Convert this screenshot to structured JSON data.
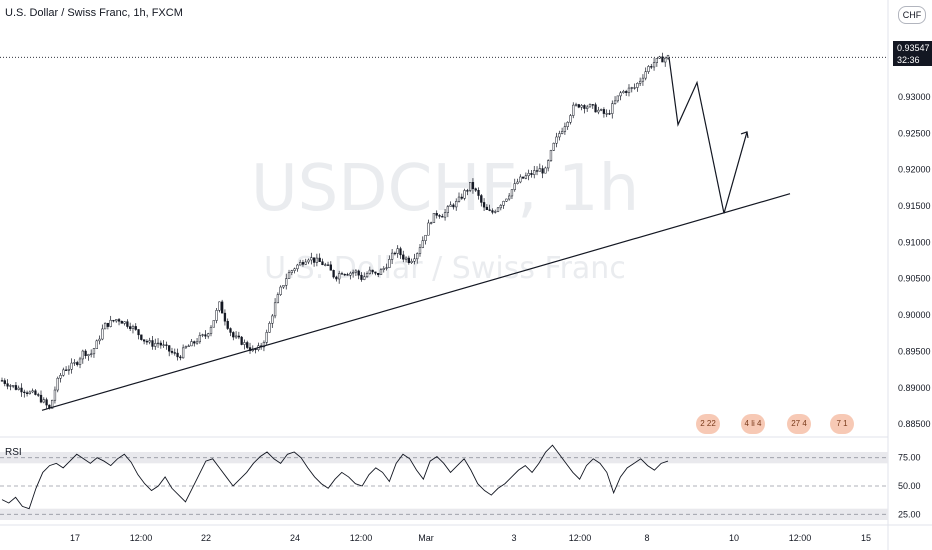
{
  "header": {
    "title": "U.S. Dollar / Swiss Franc, 1h, FXCM",
    "currency_button": "CHF",
    "watermark_symbol": "USDCHF, 1h",
    "watermark_name": "U.S. Dollar / Swiss Franc"
  },
  "price_tag": {
    "price": "0.93547",
    "countdown": "32:36"
  },
  "rsi": {
    "label": "RSI",
    "levels": [
      "75.00",
      "50.00",
      "25.00"
    ]
  },
  "events": [
    "2 22",
    "4 li 4",
    "27 4",
    "7 1"
  ],
  "colors": {
    "candles": "#131722",
    "grid_dash": "#9598a1",
    "rsi_band": "#e9e9ed",
    "price_tag_bg": "#131722"
  },
  "chart_data": {
    "type": "candlestick",
    "title": "U.S. Dollar / Swiss Franc, 1h, FXCM",
    "x_ticks": [
      "17",
      "12:00",
      "22",
      "24",
      "12:00",
      "Mar",
      "3",
      "12:00",
      "8",
      "10",
      "12:00",
      "15"
    ],
    "y_ticks": [
      "0.93000",
      "0.92500",
      "0.92000",
      "0.91500",
      "0.91000",
      "0.90500",
      "0.90000",
      "0.89500",
      "0.89000",
      "0.88500"
    ],
    "ylim": [
      0.8835,
      0.9395
    ],
    "last_price": 0.93547,
    "close_path": [
      0.891,
      0.8905,
      0.89,
      0.8898,
      0.8893,
      0.889,
      0.8882,
      0.887,
      0.8905,
      0.8925,
      0.8928,
      0.8935,
      0.895,
      0.8945,
      0.8962,
      0.8985,
      0.899,
      0.8995,
      0.899,
      0.8985,
      0.8975,
      0.8965,
      0.896,
      0.8962,
      0.8955,
      0.8948,
      0.8942,
      0.8955,
      0.896,
      0.8968,
      0.8972,
      0.899,
      0.9015,
      0.899,
      0.897,
      0.8965,
      0.8958,
      0.895,
      0.8955,
      0.8975,
      0.901,
      0.9035,
      0.9055,
      0.9065,
      0.9072,
      0.908,
      0.9075,
      0.9072,
      0.9065,
      0.9052,
      0.906,
      0.9058,
      0.906,
      0.905,
      0.906,
      0.9055,
      0.9062,
      0.9075,
      0.909,
      0.908,
      0.9075,
      0.9085,
      0.9105,
      0.913,
      0.914,
      0.9138,
      0.915,
      0.9155,
      0.9168,
      0.918,
      0.9165,
      0.9145,
      0.914,
      0.915,
      0.916,
      0.9172,
      0.9185,
      0.919,
      0.9195,
      0.92,
      0.9198,
      0.923,
      0.925,
      0.9265,
      0.9285,
      0.929,
      0.9288,
      0.9285,
      0.928,
      0.9275,
      0.929,
      0.9305,
      0.931,
      0.9312,
      0.9325,
      0.934,
      0.9348,
      0.9352,
      0.9355
    ],
    "candles_in_range": 240,
    "projection_path": [
      0.93547,
      0.9262,
      0.932,
      0.914,
      0.9252
    ],
    "trendline": [
      0.8869,
      0.9167
    ],
    "rsi_values": [
      38,
      35,
      40,
      32,
      30,
      48,
      62,
      68,
      70,
      66,
      72,
      78,
      74,
      70,
      75,
      72,
      68,
      74,
      78,
      71,
      60,
      52,
      46,
      50,
      58,
      48,
      42,
      36,
      48,
      60,
      72,
      74,
      66,
      58,
      50,
      56,
      62,
      70,
      76,
      80,
      74,
      70,
      78,
      80,
      75,
      66,
      58,
      52,
      48,
      56,
      62,
      58,
      52,
      50,
      60,
      66,
      62,
      54,
      70,
      78,
      74,
      64,
      56,
      72,
      76,
      70,
      62,
      68,
      74,
      64,
      52,
      46,
      42,
      48,
      52,
      58,
      64,
      68,
      62,
      70,
      80,
      86,
      78,
      70,
      62,
      56,
      68,
      74,
      70,
      62,
      44,
      58,
      66,
      70,
      74,
      68,
      64,
      70,
      72
    ]
  }
}
